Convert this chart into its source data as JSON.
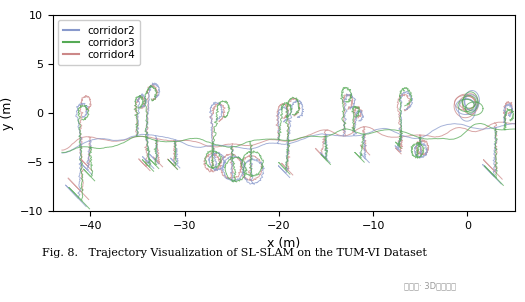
{
  "xlim": [
    -44,
    5
  ],
  "ylim": [
    -10,
    10
  ],
  "xlabel": "x (m)",
  "ylabel": "y (m)",
  "legend_labels": [
    "corridor2",
    "corridor3",
    "corridor4"
  ],
  "legend_colors": [
    "#8899cc",
    "#55aa55",
    "#cc8888"
  ],
  "caption": "Fig. 8.   Trajectory Visualization of SL-SLAM on the TUM-VI Dataset",
  "watermark": "公众号· 3D视觉之心",
  "background_color": "#ffffff",
  "ax_background": "#ffffff",
  "line_alpha": 0.75,
  "line_width": 0.7,
  "fig_width": 5.25,
  "fig_height": 3.02,
  "dpi": 100
}
